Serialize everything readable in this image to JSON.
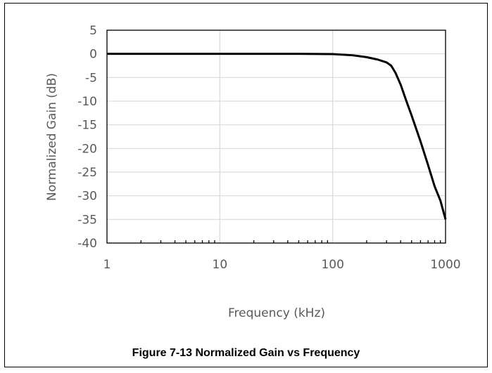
{
  "chart_data": {
    "type": "line",
    "caption": "Figure 7-13 Normalized Gain vs Frequency",
    "xlabel": "Frequency (kHz)",
    "ylabel": "Normalized Gain (dB)",
    "xscale": "log",
    "xlim": [
      1,
      1000
    ],
    "ylim": [
      -40,
      5
    ],
    "xticks": [
      1,
      10,
      100,
      1000
    ],
    "xtick_labels": [
      "1",
      "10",
      "100",
      "1000"
    ],
    "yticks": [
      5,
      0,
      -5,
      -10,
      -15,
      -20,
      -25,
      -30,
      -35,
      -40
    ],
    "ytick_labels": [
      "5",
      "0",
      "-5",
      "-10",
      "-15",
      "-20",
      "-25",
      "-30",
      "-35",
      "-40"
    ],
    "grid": true,
    "legend": "none",
    "series": [
      {
        "color": "#000000",
        "x": [
          1,
          10,
          50,
          100,
          150,
          200,
          250,
          300,
          330,
          360,
          400,
          450,
          500,
          600,
          700,
          800,
          900,
          1000
        ],
        "y": [
          0,
          0,
          0,
          -0.05,
          -0.3,
          -0.7,
          -1.2,
          -1.8,
          -2.5,
          -4,
          -6.5,
          -10,
          -13,
          -18.5,
          -23.5,
          -28,
          -31,
          -35
        ]
      }
    ]
  }
}
